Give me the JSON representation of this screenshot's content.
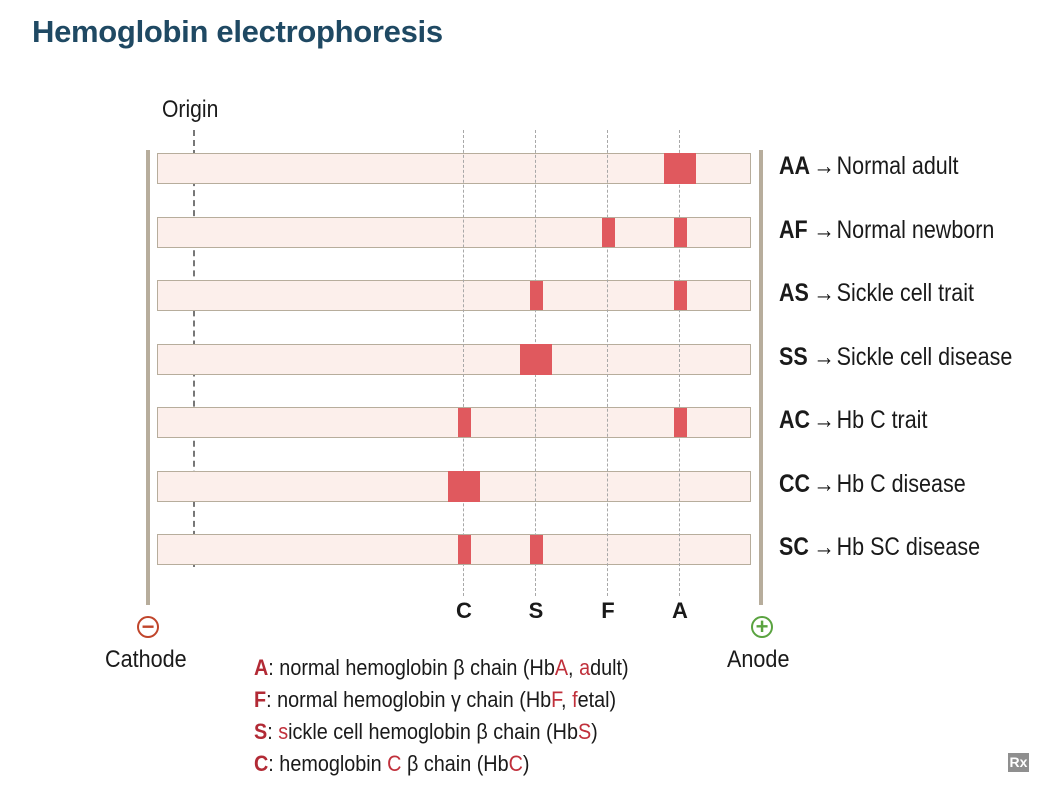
{
  "title": "Hemoglobin electrophoresis",
  "origin_label": "Origin",
  "positions": [
    "C",
    "S",
    "F",
    "A"
  ],
  "lanes": [
    {
      "code": "AA",
      "arrow": "→",
      "description": "Normal adult",
      "bands": [
        {
          "position": "A",
          "strength": "strong"
        }
      ]
    },
    {
      "code": "AF",
      "arrow": "→",
      "description": "Normal newborn",
      "bands": [
        {
          "position": "F",
          "strength": "weak"
        },
        {
          "position": "A",
          "strength": "weak"
        }
      ]
    },
    {
      "code": "AS",
      "arrow": "→",
      "description": "Sickle cell trait",
      "bands": [
        {
          "position": "S",
          "strength": "weak"
        },
        {
          "position": "A",
          "strength": "weak"
        }
      ]
    },
    {
      "code": "SS",
      "arrow": "→",
      "description": "Sickle cell disease",
      "bands": [
        {
          "position": "S",
          "strength": "strong"
        }
      ]
    },
    {
      "code": "AC",
      "arrow": "→",
      "description": "Hb C trait",
      "bands": [
        {
          "position": "C",
          "strength": "weak"
        },
        {
          "position": "A",
          "strength": "weak"
        }
      ]
    },
    {
      "code": "CC",
      "arrow": "→",
      "description": "Hb C disease",
      "bands": [
        {
          "position": "C",
          "strength": "strong"
        }
      ]
    },
    {
      "code": "SC",
      "arrow": "→",
      "description": "Hb SC disease",
      "bands": [
        {
          "position": "C",
          "strength": "weak"
        },
        {
          "position": "S",
          "strength": "weak"
        }
      ]
    }
  ],
  "electrodes": {
    "cathode": {
      "sign": "−",
      "label": "Cathode"
    },
    "anode": {
      "sign": "+",
      "label": "Anode"
    }
  },
  "legend": [
    {
      "key": "A",
      "parts": [
        [
          "t",
          ": normal hemoglobin β chain (Hb"
        ],
        [
          "h",
          "A"
        ],
        [
          "t",
          ", "
        ],
        [
          "h",
          "a"
        ],
        [
          "t",
          "dult)"
        ]
      ]
    },
    {
      "key": "F",
      "parts": [
        [
          "t",
          ": normal hemoglobin γ chain (Hb"
        ],
        [
          "h",
          "F"
        ],
        [
          "t",
          ", "
        ],
        [
          "h",
          "f"
        ],
        [
          "t",
          "etal)"
        ]
      ]
    },
    {
      "key": "S",
      "parts": [
        [
          "t",
          ": "
        ],
        [
          "h",
          "s"
        ],
        [
          "t",
          "ickle cell hemoglobin β chain (Hb"
        ],
        [
          "h",
          "S"
        ],
        [
          "t",
          ")"
        ]
      ]
    },
    {
      "key": "C",
      "parts": [
        [
          "t",
          ": hemoglobin "
        ],
        [
          "h",
          "C"
        ],
        [
          "t",
          " β chain (Hb"
        ],
        [
          "h",
          "C"
        ],
        [
          "t",
          ")"
        ]
      ]
    }
  ],
  "logo_text": "Rx",
  "colors": {
    "band": "#e0595e",
    "title": "#1f4963",
    "legend_key": "#b22a35"
  }
}
